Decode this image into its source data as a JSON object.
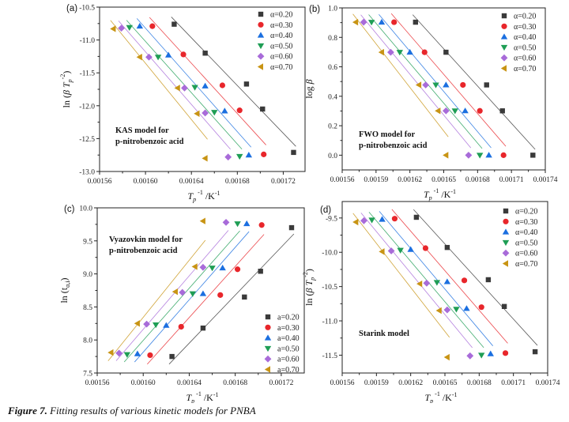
{
  "caption": {
    "label": "Figure 7.",
    "text": " Fitting results of various kinetic models for PNBA"
  },
  "colors": {
    "0.20": "#3a3a3a",
    "0.30": "#e8262b",
    "0.40": "#1b6fe0",
    "0.50": "#1f9e55",
    "0.60": "#a86bd9",
    "0.70": "#c89414"
  },
  "chart_data": [
    {
      "id": "a",
      "type": "scatter",
      "panel_label": "(a)",
      "title": "",
      "annotation": [
        "KAS model for",
        "p-nitrobenzoic acid"
      ],
      "xlabel": "T_p^-1 /K^-1",
      "ylabel": "ln (β T_p^-2)",
      "xlim": [
        0.00156,
        0.001739
      ],
      "ylim": [
        -13.0,
        -10.5
      ],
      "xticks": [
        "0.00156",
        "0.00160",
        "0.00164",
        "0.00168",
        "0.00172"
      ],
      "yticks": [
        "-10.5",
        "-11.0",
        "-11.5",
        "-12.0",
        "-12.5",
        "-13.0"
      ],
      "legend_position": "top-right",
      "legend_prefix": "α=",
      "fit_lines": true,
      "series": [
        {
          "name": "0.20",
          "marker": "square",
          "x": [
            0.001625,
            0.001652,
            0.001688,
            0.001702,
            0.001729
          ],
          "y": [
            -10.76,
            -11.2,
            -11.67,
            -12.05,
            -12.71
          ]
        },
        {
          "name": "0.30",
          "marker": "circle",
          "x": [
            0.001606,
            0.001633,
            0.001667,
            0.001682,
            0.001703
          ],
          "y": [
            -10.79,
            -11.22,
            -11.69,
            -12.07,
            -12.74
          ]
        },
        {
          "name": "0.40",
          "marker": "triangle-up",
          "x": [
            0.001595,
            0.00162,
            0.001652,
            0.001669,
            0.00169
          ],
          "y": [
            -10.79,
            -11.23,
            -11.7,
            -12.08,
            -12.75
          ]
        },
        {
          "name": "0.50",
          "marker": "triangle-down",
          "x": [
            0.001586,
            0.001611,
            0.001643,
            0.00166,
            0.001682
          ],
          "y": [
            -10.81,
            -11.26,
            -11.72,
            -12.1,
            -12.77
          ]
        },
        {
          "name": "0.60",
          "marker": "diamond",
          "x": [
            0.001579,
            0.001603,
            0.001634,
            0.001652,
            0.001672
          ],
          "y": [
            -10.82,
            -11.26,
            -11.73,
            -12.11,
            -12.78
          ]
        },
        {
          "name": "0.70",
          "marker": "triangle-left",
          "x": [
            0.001572,
            0.001595,
            0.001628,
            0.001645,
            0.001652
          ],
          "y": [
            -10.83,
            -11.26,
            -11.73,
            -12.12,
            -12.8
          ]
        }
      ]
    },
    {
      "id": "b",
      "type": "scatter",
      "panel_label": "(b)",
      "title": "",
      "annotation": [
        "FWO model for",
        "p-nitrobenzoic acid"
      ],
      "xlabel": "T_p^-1 /K^-1",
      "ylabel": "log β",
      "xlim": [
        0.00156,
        0.00174
      ],
      "ylim": [
        -0.1,
        1.0
      ],
      "xticks": [
        "0.00156",
        "0.00159",
        "0.00162",
        "0.00165",
        "0.00168",
        "0.00171",
        "0.00174"
      ],
      "yticks": [
        "0.0",
        "0.2",
        "0.4",
        "0.6",
        "0.8",
        "1.0"
      ],
      "legend_position": "top-right",
      "legend_prefix": "α=",
      "fit_lines": true,
      "series": [
        {
          "name": "0.20",
          "marker": "square",
          "x": [
            0.001625,
            0.001652,
            0.001688,
            0.001702,
            0.001729
          ],
          "y": [
            0.903,
            0.699,
            0.477,
            0.301,
            0.0
          ]
        },
        {
          "name": "0.30",
          "marker": "circle",
          "x": [
            0.001606,
            0.001633,
            0.001667,
            0.001682,
            0.001703
          ],
          "y": [
            0.903,
            0.699,
            0.477,
            0.301,
            0.0
          ]
        },
        {
          "name": "0.40",
          "marker": "triangle-up",
          "x": [
            0.001595,
            0.00162,
            0.001652,
            0.001669,
            0.00169
          ],
          "y": [
            0.903,
            0.699,
            0.477,
            0.301,
            0.0
          ]
        },
        {
          "name": "0.50",
          "marker": "triangle-down",
          "x": [
            0.001586,
            0.001611,
            0.001643,
            0.00166,
            0.001682
          ],
          "y": [
            0.903,
            0.699,
            0.477,
            0.301,
            0.0
          ]
        },
        {
          "name": "0.60",
          "marker": "diamond",
          "x": [
            0.001579,
            0.001603,
            0.001634,
            0.001652,
            0.001672
          ],
          "y": [
            0.903,
            0.699,
            0.477,
            0.301,
            0.0
          ]
        },
        {
          "name": "0.70",
          "marker": "triangle-left",
          "x": [
            0.001572,
            0.001595,
            0.001628,
            0.001645,
            0.001652
          ],
          "y": [
            0.903,
            0.699,
            0.477,
            0.301,
            0.0
          ]
        }
      ]
    },
    {
      "id": "c",
      "type": "scatter",
      "panel_label": "(c)",
      "title": "",
      "annotation": [
        "Vyazovkin model for",
        "p-nitrobenzoic acid"
      ],
      "xlabel": "T_p^-1 /K^-1",
      "ylabel": "ln (t_α,i)",
      "xlim": [
        0.00156,
        0.00174
      ],
      "ylim": [
        7.5,
        10.0
      ],
      "xticks": [
        "0.00156",
        "0.00160",
        "0.00164",
        "0.00168",
        "0.00172"
      ],
      "yticks": [
        "7.5",
        "8.0",
        "8.5",
        "9.0",
        "9.5",
        "10.0"
      ],
      "legend_position": "bottom-right",
      "legend_prefix": "a=",
      "fit_lines": true,
      "series": [
        {
          "name": "0.20",
          "marker": "square",
          "x": [
            0.001625,
            0.001652,
            0.001688,
            0.001702,
            0.001729
          ],
          "y": [
            7.75,
            8.18,
            8.65,
            9.04,
            9.7
          ]
        },
        {
          "name": "0.30",
          "marker": "circle",
          "x": [
            0.001606,
            0.001633,
            0.001667,
            0.001682,
            0.001703
          ],
          "y": [
            7.77,
            8.2,
            8.68,
            9.07,
            9.74
          ]
        },
        {
          "name": "0.40",
          "marker": "triangle-up",
          "x": [
            0.001595,
            0.00162,
            0.001652,
            0.001669,
            0.00169
          ],
          "y": [
            7.79,
            8.22,
            8.7,
            9.09,
            9.76
          ]
        },
        {
          "name": "0.50",
          "marker": "triangle-down",
          "x": [
            0.001586,
            0.001611,
            0.001643,
            0.00166,
            0.001682
          ],
          "y": [
            7.78,
            8.23,
            8.7,
            9.09,
            9.76
          ]
        },
        {
          "name": "0.60",
          "marker": "diamond",
          "x": [
            0.001579,
            0.001603,
            0.001634,
            0.001652,
            0.001672
          ],
          "y": [
            7.8,
            8.24,
            8.72,
            9.1,
            9.78
          ]
        },
        {
          "name": "0.70",
          "marker": "triangle-left",
          "x": [
            0.001572,
            0.001595,
            0.001628,
            0.001645,
            0.001652
          ],
          "y": [
            7.81,
            8.25,
            8.73,
            9.11,
            9.8
          ]
        }
      ]
    },
    {
      "id": "d",
      "type": "scatter",
      "panel_label": "(d)",
      "title": "",
      "annotation": [
        "Starink model"
      ],
      "xlabel": "T_p^-1 /K^-1",
      "ylabel": "ln (β T_p^-2)",
      "xlim": [
        0.00156,
        0.00174
      ],
      "ylim": [
        -11.76,
        -9.26
      ],
      "xticks": [
        "0.00156",
        "0.00159",
        "0.00162",
        "0.00165",
        "0.00168",
        "0.00171",
        "0.00174"
      ],
      "yticks": [
        "-9.5",
        "-10.0",
        "-10.5",
        "-11.0",
        "-11.5"
      ],
      "legend_position": "top-right",
      "legend_prefix": "α=",
      "fit_lines": true,
      "series": [
        {
          "name": "0.20",
          "marker": "square",
          "x": [
            0.001625,
            0.001652,
            0.001688,
            0.001702,
            0.001729
          ],
          "y": [
            -9.49,
            -9.93,
            -10.4,
            -10.79,
            -11.45
          ]
        },
        {
          "name": "0.30",
          "marker": "circle",
          "x": [
            0.001606,
            0.001633,
            0.001667,
            0.001682,
            0.001703
          ],
          "y": [
            -9.51,
            -9.94,
            -10.41,
            -10.8,
            -11.47
          ]
        },
        {
          "name": "0.40",
          "marker": "triangle-up",
          "x": [
            0.001595,
            0.00162,
            0.001652,
            0.001669,
            0.00169
          ],
          "y": [
            -9.52,
            -9.96,
            -10.43,
            -10.82,
            -11.48
          ]
        },
        {
          "name": "0.50",
          "marker": "triangle-down",
          "x": [
            0.001586,
            0.001611,
            0.001643,
            0.00166,
            0.001682
          ],
          "y": [
            -9.53,
            -9.97,
            -10.44,
            -10.83,
            -11.5
          ]
        },
        {
          "name": "0.60",
          "marker": "diamond",
          "x": [
            0.001579,
            0.001603,
            0.001634,
            0.001652,
            0.001672
          ],
          "y": [
            -9.54,
            -9.98,
            -10.45,
            -10.84,
            -11.51
          ]
        },
        {
          "name": "0.70",
          "marker": "triangle-left",
          "x": [
            0.001572,
            0.001595,
            0.001628,
            0.001645,
            0.001652
          ],
          "y": [
            -9.56,
            -9.99,
            -10.46,
            -10.85,
            -11.53
          ]
        }
      ]
    }
  ]
}
